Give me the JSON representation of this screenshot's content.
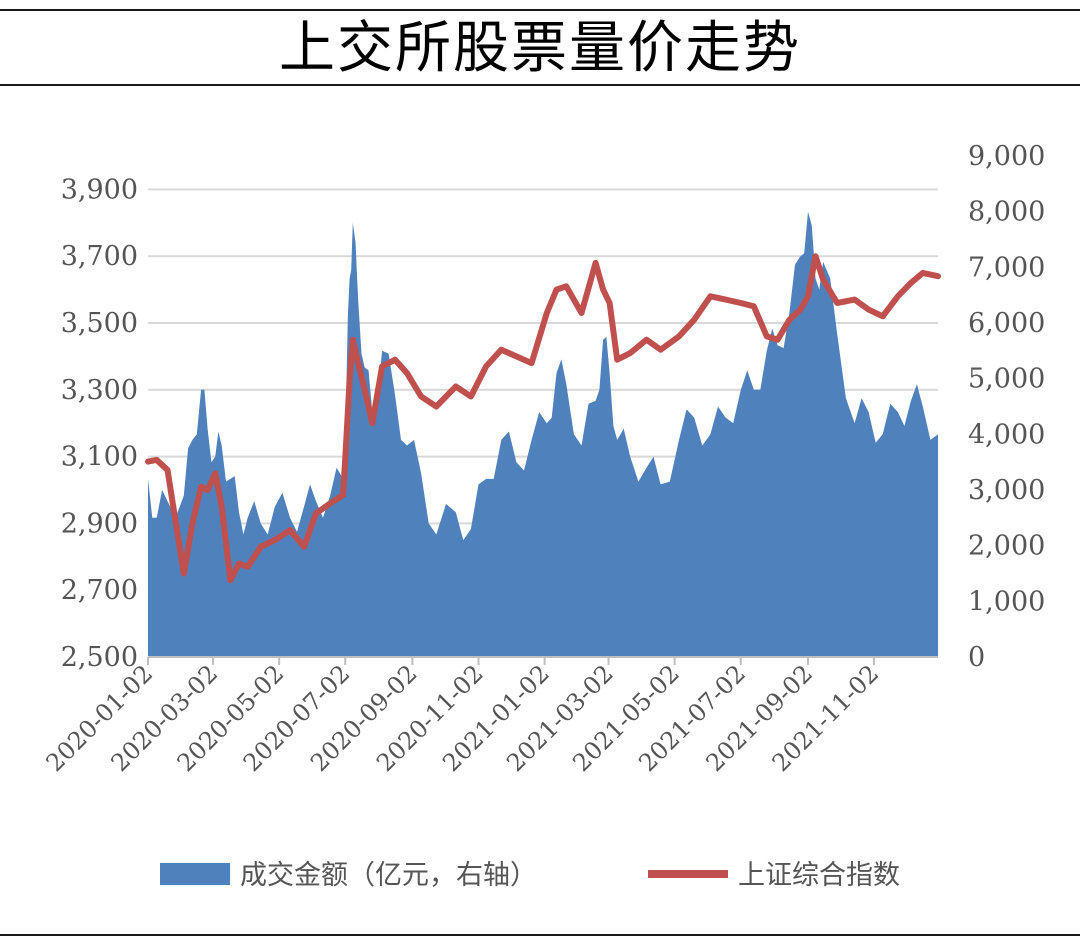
{
  "title": "上交所股票量价走势",
  "colors": {
    "volume": "#4f81bd",
    "index": "#c0504d",
    "grid": "#d9d9d9",
    "axis": "#bfbfbf"
  },
  "legend": {
    "volume_label": "成交金额（亿元，右轴）",
    "index_label": "上证综合指数"
  },
  "chart_data": {
    "type": "line",
    "y_left": {
      "ylim": [
        2500,
        4000
      ],
      "ticks": [
        "2,500",
        "2,700",
        "2,900",
        "3,100",
        "3,300",
        "3,500",
        "3,700",
        "3,900"
      ],
      "tick_values": [
        2500,
        2700,
        2900,
        3100,
        3300,
        3500,
        3700,
        3900
      ],
      "grid": true
    },
    "y_right": {
      "ylim": [
        0,
        9000
      ],
      "ticks": [
        "0",
        "1,000",
        "2,000",
        "3,000",
        "4,000",
        "5,000",
        "6,000",
        "7,000",
        "8,000",
        "9,000"
      ],
      "tick_values": [
        0,
        1000,
        2000,
        3000,
        4000,
        5000,
        6000,
        7000,
        8000,
        9000
      ]
    },
    "x_ticks": [
      "2020-01-02",
      "2020-03-02",
      "2020-05-02",
      "2020-07-02",
      "2020-09-02",
      "2020-11-02",
      "2021-01-02",
      "2021-03-02",
      "2021-05-02",
      "2021-07-02",
      "2021-09-02",
      "2021-11-02"
    ],
    "x_range": [
      "2020-01-02",
      "2021-12-31"
    ],
    "series": [
      {
        "name": "成交金额（亿元，右轴）",
        "type": "area",
        "axis": "right",
        "x": [
          "2020-01-02",
          "2020-01-10",
          "2020-01-20",
          "2020-02-04",
          "2020-02-12",
          "2020-02-20",
          "2020-02-26",
          "2020-03-04",
          "2020-03-10",
          "2020-03-18",
          "2020-03-26",
          "2020-04-03",
          "2020-04-15",
          "2020-04-28",
          "2020-05-12",
          "2020-05-25",
          "2020-06-05",
          "2020-06-18",
          "2020-06-30",
          "2020-07-03",
          "2020-07-06",
          "2020-07-09",
          "2020-07-14",
          "2020-07-20",
          "2020-07-27",
          "2020-08-05",
          "2020-08-17",
          "2020-08-28",
          "2020-09-10",
          "2020-09-24",
          "2020-10-12",
          "2020-10-26",
          "2020-11-09",
          "2020-11-23",
          "2020-12-07",
          "2020-12-21",
          "2021-01-04",
          "2021-01-13",
          "2021-01-22",
          "2021-02-05",
          "2021-02-18",
          "2021-02-25",
          "2021-03-03",
          "2021-03-10",
          "2021-03-22",
          "2021-04-06",
          "2021-04-19",
          "2021-05-06",
          "2021-05-20",
          "2021-06-04",
          "2021-06-18",
          "2021-07-02",
          "2021-07-14",
          "2021-07-26",
          "2021-08-05",
          "2021-08-16",
          "2021-08-26",
          "2021-09-02",
          "2021-09-09",
          "2021-09-16",
          "2021-09-29",
          "2021-10-15",
          "2021-10-28",
          "2021-11-10",
          "2021-11-24",
          "2021-12-06",
          "2021-12-17",
          "2021-12-31"
        ],
        "values": [
          3200,
          2500,
          2800,
          2900,
          3900,
          4800,
          4100,
          3600,
          3800,
          3200,
          2600,
          2500,
          2400,
          2700,
          2500,
          2700,
          2800,
          2900,
          3200,
          4800,
          6800,
          7800,
          6400,
          5200,
          4400,
          5500,
          4700,
          3800,
          3300,
          2200,
          2600,
          2300,
          3200,
          3900,
          3500,
          3900,
          4200,
          5100,
          4900,
          3800,
          4600,
          5700,
          5100,
          3900,
          3600,
          3400,
          3100,
          3900,
          4300,
          4000,
          4300,
          4800,
          4800,
          5500,
          5600,
          6200,
          7200,
          8000,
          6800,
          7100,
          5800,
          4200,
          4400,
          4000,
          4400,
          4600,
          4500,
          4000
        ]
      },
      {
        "name": "上证综合指数",
        "type": "line",
        "axis": "left",
        "x": [
          "2020-01-02",
          "2020-01-10",
          "2020-01-20",
          "2020-02-04",
          "2020-02-12",
          "2020-02-20",
          "2020-02-26",
          "2020-03-04",
          "2020-03-10",
          "2020-03-18",
          "2020-03-26",
          "2020-04-03",
          "2020-04-15",
          "2020-04-28",
          "2020-05-12",
          "2020-05-25",
          "2020-06-05",
          "2020-06-18",
          "2020-06-30",
          "2020-07-03",
          "2020-07-06",
          "2020-07-09",
          "2020-07-14",
          "2020-07-20",
          "2020-07-27",
          "2020-08-05",
          "2020-08-17",
          "2020-08-28",
          "2020-09-10",
          "2020-09-24",
          "2020-10-12",
          "2020-10-26",
          "2020-11-09",
          "2020-11-23",
          "2020-12-07",
          "2020-12-21",
          "2021-01-04",
          "2021-01-13",
          "2021-01-22",
          "2021-02-05",
          "2021-02-18",
          "2021-02-25",
          "2021-03-03",
          "2021-03-10",
          "2021-03-22",
          "2021-04-06",
          "2021-04-19",
          "2021-05-06",
          "2021-05-20",
          "2021-06-04",
          "2021-06-18",
          "2021-07-02",
          "2021-07-14",
          "2021-07-26",
          "2021-08-05",
          "2021-08-16",
          "2021-08-26",
          "2021-09-02",
          "2021-09-09",
          "2021-09-16",
          "2021-09-29",
          "2021-10-15",
          "2021-10-28",
          "2021-11-10",
          "2021-11-24",
          "2021-12-06",
          "2021-12-17",
          "2021-12-31"
        ],
        "values": [
          3085,
          3090,
          3060,
          2750,
          2900,
          3010,
          3000,
          3050,
          2950,
          2730,
          2780,
          2770,
          2830,
          2850,
          2880,
          2830,
          2930,
          2960,
          2985,
          3150,
          3330,
          3450,
          3380,
          3300,
          3200,
          3370,
          3390,
          3350,
          3280,
          3250,
          3310,
          3280,
          3370,
          3420,
          3400,
          3380,
          3530,
          3600,
          3610,
          3530,
          3680,
          3600,
          3560,
          3390,
          3410,
          3450,
          3420,
          3460,
          3510,
          3580,
          3570,
          3560,
          3550,
          3460,
          3450,
          3510,
          3540,
          3580,
          3700,
          3630,
          3560,
          3570,
          3540,
          3520,
          3580,
          3620,
          3650,
          3640
        ]
      }
    ]
  }
}
